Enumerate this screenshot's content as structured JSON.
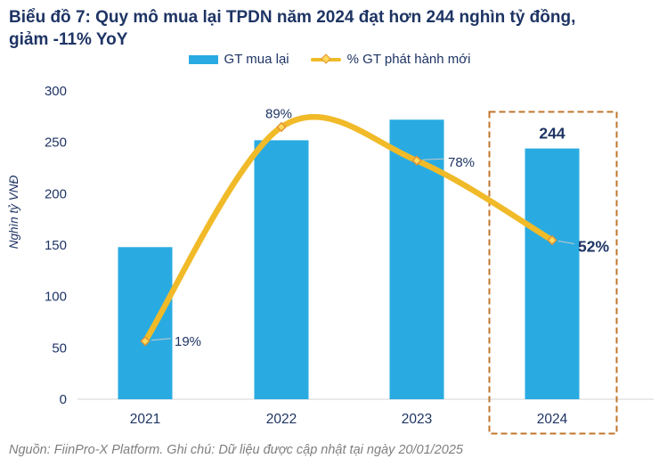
{
  "title": "Biểu đồ 7: Quy mô mua lại TPDN năm 2024 đạt hơn 244 nghìn tỷ đồng,\ngiảm -11% YoY",
  "legend": {
    "bar_label": "GT mua lại",
    "line_label": "% GT phát hành mới"
  },
  "footer": "Nguồn: FiinPro-X Platform. Ghi chú: Dữ liệu được cập nhật tại ngày 20/01/2025",
  "colors": {
    "bar": "#29ABE2",
    "line": "#F0BA28",
    "marker_fill": "#FFD95C",
    "marker_stroke": "#E2912F",
    "title_navy": "#1E3464",
    "highlight_box": "#C0762C",
    "axis_line": "#D6D6D6",
    "leader": "#C9C9C9",
    "footer_gray": "#7F7F7F"
  },
  "chart_data": {
    "type": "bar+line",
    "title": "Biểu đồ 7: Quy mô mua lại TPDN năm 2024 đạt hơn 244 nghìn tỷ đồng, giảm -11% YoY",
    "categories": [
      "2021",
      "2022",
      "2023",
      "2024"
    ],
    "series": [
      {
        "name": "GT mua lại",
        "type": "bar",
        "axis": "left",
        "values": [
          148,
          252,
          272,
          244
        ],
        "value_labels": [
          null,
          null,
          null,
          "244"
        ]
      },
      {
        "name": "% GT phát hành mới",
        "type": "line",
        "axis": "right",
        "values": [
          19,
          89,
          78,
          52
        ],
        "value_labels": [
          "19%",
          "89%",
          "78%",
          "52%"
        ]
      }
    ],
    "ylabel": "Nghìn tỷ VNĐ",
    "xlabel": "",
    "y_ticks": [
      0,
      50,
      100,
      150,
      200,
      250,
      300
    ],
    "ylim": [
      0,
      300
    ],
    "y2lim": [
      0,
      100
    ],
    "y2_axis_visible": false,
    "grid": false,
    "legend_position": "top",
    "highlight": {
      "category": "2024",
      "shape": "dashed-rectangle"
    }
  }
}
